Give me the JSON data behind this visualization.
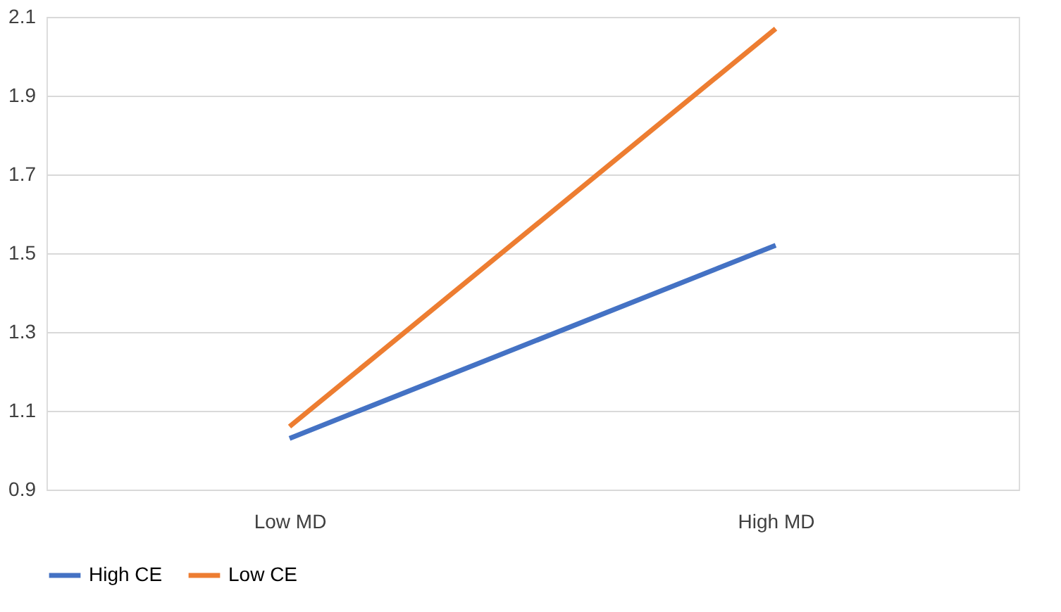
{
  "chart_data": {
    "type": "line",
    "categories": [
      "Low MD",
      "High MD"
    ],
    "series": [
      {
        "name": "High CE",
        "color": "#4472c4",
        "values": [
          1.03,
          1.52
        ]
      },
      {
        "name": "Low CE",
        "color": "#ed7d31",
        "values": [
          1.06,
          2.07
        ]
      }
    ],
    "ylim": [
      0.9,
      2.1
    ],
    "yticks": [
      0.9,
      1.1,
      1.3,
      1.5,
      1.7,
      1.9,
      2.1
    ],
    "grid": "y",
    "legend": "bottom",
    "marker": "none",
    "line_style": "solid"
  }
}
